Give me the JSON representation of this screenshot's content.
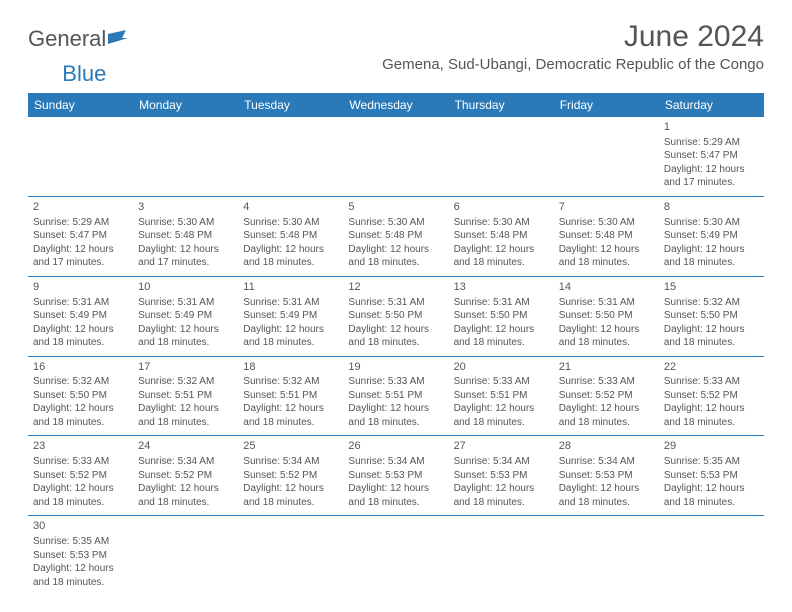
{
  "logo": {
    "general": "General",
    "blue": "Blue"
  },
  "title": "June 2024",
  "location": "Gemena, Sud-Ubangi, Democratic Republic of the Congo",
  "colors": {
    "header_bg": "#2a7ab9",
    "header_fg": "#ffffff",
    "border": "#2a7ab9",
    "text": "#555555"
  },
  "dayHeaders": [
    "Sunday",
    "Monday",
    "Tuesday",
    "Wednesday",
    "Thursday",
    "Friday",
    "Saturday"
  ],
  "weeks": [
    [
      null,
      null,
      null,
      null,
      null,
      null,
      {
        "n": "1",
        "sr": "Sunrise: 5:29 AM",
        "ss": "Sunset: 5:47 PM",
        "d1": "Daylight: 12 hours",
        "d2": "and 17 minutes."
      }
    ],
    [
      {
        "n": "2",
        "sr": "Sunrise: 5:29 AM",
        "ss": "Sunset: 5:47 PM",
        "d1": "Daylight: 12 hours",
        "d2": "and 17 minutes."
      },
      {
        "n": "3",
        "sr": "Sunrise: 5:30 AM",
        "ss": "Sunset: 5:48 PM",
        "d1": "Daylight: 12 hours",
        "d2": "and 17 minutes."
      },
      {
        "n": "4",
        "sr": "Sunrise: 5:30 AM",
        "ss": "Sunset: 5:48 PM",
        "d1": "Daylight: 12 hours",
        "d2": "and 18 minutes."
      },
      {
        "n": "5",
        "sr": "Sunrise: 5:30 AM",
        "ss": "Sunset: 5:48 PM",
        "d1": "Daylight: 12 hours",
        "d2": "and 18 minutes."
      },
      {
        "n": "6",
        "sr": "Sunrise: 5:30 AM",
        "ss": "Sunset: 5:48 PM",
        "d1": "Daylight: 12 hours",
        "d2": "and 18 minutes."
      },
      {
        "n": "7",
        "sr": "Sunrise: 5:30 AM",
        "ss": "Sunset: 5:48 PM",
        "d1": "Daylight: 12 hours",
        "d2": "and 18 minutes."
      },
      {
        "n": "8",
        "sr": "Sunrise: 5:30 AM",
        "ss": "Sunset: 5:49 PM",
        "d1": "Daylight: 12 hours",
        "d2": "and 18 minutes."
      }
    ],
    [
      {
        "n": "9",
        "sr": "Sunrise: 5:31 AM",
        "ss": "Sunset: 5:49 PM",
        "d1": "Daylight: 12 hours",
        "d2": "and 18 minutes."
      },
      {
        "n": "10",
        "sr": "Sunrise: 5:31 AM",
        "ss": "Sunset: 5:49 PM",
        "d1": "Daylight: 12 hours",
        "d2": "and 18 minutes."
      },
      {
        "n": "11",
        "sr": "Sunrise: 5:31 AM",
        "ss": "Sunset: 5:49 PM",
        "d1": "Daylight: 12 hours",
        "d2": "and 18 minutes."
      },
      {
        "n": "12",
        "sr": "Sunrise: 5:31 AM",
        "ss": "Sunset: 5:50 PM",
        "d1": "Daylight: 12 hours",
        "d2": "and 18 minutes."
      },
      {
        "n": "13",
        "sr": "Sunrise: 5:31 AM",
        "ss": "Sunset: 5:50 PM",
        "d1": "Daylight: 12 hours",
        "d2": "and 18 minutes."
      },
      {
        "n": "14",
        "sr": "Sunrise: 5:31 AM",
        "ss": "Sunset: 5:50 PM",
        "d1": "Daylight: 12 hours",
        "d2": "and 18 minutes."
      },
      {
        "n": "15",
        "sr": "Sunrise: 5:32 AM",
        "ss": "Sunset: 5:50 PM",
        "d1": "Daylight: 12 hours",
        "d2": "and 18 minutes."
      }
    ],
    [
      {
        "n": "16",
        "sr": "Sunrise: 5:32 AM",
        "ss": "Sunset: 5:50 PM",
        "d1": "Daylight: 12 hours",
        "d2": "and 18 minutes."
      },
      {
        "n": "17",
        "sr": "Sunrise: 5:32 AM",
        "ss": "Sunset: 5:51 PM",
        "d1": "Daylight: 12 hours",
        "d2": "and 18 minutes."
      },
      {
        "n": "18",
        "sr": "Sunrise: 5:32 AM",
        "ss": "Sunset: 5:51 PM",
        "d1": "Daylight: 12 hours",
        "d2": "and 18 minutes."
      },
      {
        "n": "19",
        "sr": "Sunrise: 5:33 AM",
        "ss": "Sunset: 5:51 PM",
        "d1": "Daylight: 12 hours",
        "d2": "and 18 minutes."
      },
      {
        "n": "20",
        "sr": "Sunrise: 5:33 AM",
        "ss": "Sunset: 5:51 PM",
        "d1": "Daylight: 12 hours",
        "d2": "and 18 minutes."
      },
      {
        "n": "21",
        "sr": "Sunrise: 5:33 AM",
        "ss": "Sunset: 5:52 PM",
        "d1": "Daylight: 12 hours",
        "d2": "and 18 minutes."
      },
      {
        "n": "22",
        "sr": "Sunrise: 5:33 AM",
        "ss": "Sunset: 5:52 PM",
        "d1": "Daylight: 12 hours",
        "d2": "and 18 minutes."
      }
    ],
    [
      {
        "n": "23",
        "sr": "Sunrise: 5:33 AM",
        "ss": "Sunset: 5:52 PM",
        "d1": "Daylight: 12 hours",
        "d2": "and 18 minutes."
      },
      {
        "n": "24",
        "sr": "Sunrise: 5:34 AM",
        "ss": "Sunset: 5:52 PM",
        "d1": "Daylight: 12 hours",
        "d2": "and 18 minutes."
      },
      {
        "n": "25",
        "sr": "Sunrise: 5:34 AM",
        "ss": "Sunset: 5:52 PM",
        "d1": "Daylight: 12 hours",
        "d2": "and 18 minutes."
      },
      {
        "n": "26",
        "sr": "Sunrise: 5:34 AM",
        "ss": "Sunset: 5:53 PM",
        "d1": "Daylight: 12 hours",
        "d2": "and 18 minutes."
      },
      {
        "n": "27",
        "sr": "Sunrise: 5:34 AM",
        "ss": "Sunset: 5:53 PM",
        "d1": "Daylight: 12 hours",
        "d2": "and 18 minutes."
      },
      {
        "n": "28",
        "sr": "Sunrise: 5:34 AM",
        "ss": "Sunset: 5:53 PM",
        "d1": "Daylight: 12 hours",
        "d2": "and 18 minutes."
      },
      {
        "n": "29",
        "sr": "Sunrise: 5:35 AM",
        "ss": "Sunset: 5:53 PM",
        "d1": "Daylight: 12 hours",
        "d2": "and 18 minutes."
      }
    ],
    [
      {
        "n": "30",
        "sr": "Sunrise: 5:35 AM",
        "ss": "Sunset: 5:53 PM",
        "d1": "Daylight: 12 hours",
        "d2": "and 18 minutes."
      },
      null,
      null,
      null,
      null,
      null,
      null
    ]
  ]
}
